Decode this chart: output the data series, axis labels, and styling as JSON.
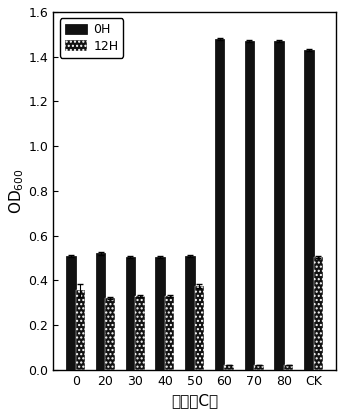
{
  "categories": [
    "0",
    "20",
    "30",
    "40",
    "50",
    "60",
    "70",
    "80",
    "CK"
  ],
  "oh_values": [
    0.51,
    0.52,
    0.505,
    0.505,
    0.51,
    1.48,
    1.47,
    1.47,
    1.43
  ],
  "12h_values": [
    0.355,
    0.32,
    0.33,
    0.33,
    0.375,
    0.02,
    0.02,
    0.02,
    0.505
  ],
  "oh_errors": [
    0.005,
    0.005,
    0.005,
    0.005,
    0.005,
    0.005,
    0.005,
    0.005,
    0.005
  ],
  "12h_errors": [
    0.03,
    0.005,
    0.005,
    0.005,
    0.01,
    0.0,
    0.0,
    0.0,
    0.005
  ],
  "bar_width": 0.32,
  "oh_color": "#111111",
  "12h_color": "#111111",
  "ylim": [
    0.0,
    1.6
  ],
  "yticks": [
    0.0,
    0.2,
    0.4,
    0.6,
    0.8,
    1.0,
    1.2,
    1.4,
    1.6
  ],
  "ylabel": "OD$_{600}$",
  "xlabel": "温度（C）",
  "legend_labels": [
    "0H",
    "12H"
  ],
  "background_color": "#ffffff",
  "label_fontsize": 11,
  "tick_fontsize": 9,
  "legend_fontsize": 9
}
